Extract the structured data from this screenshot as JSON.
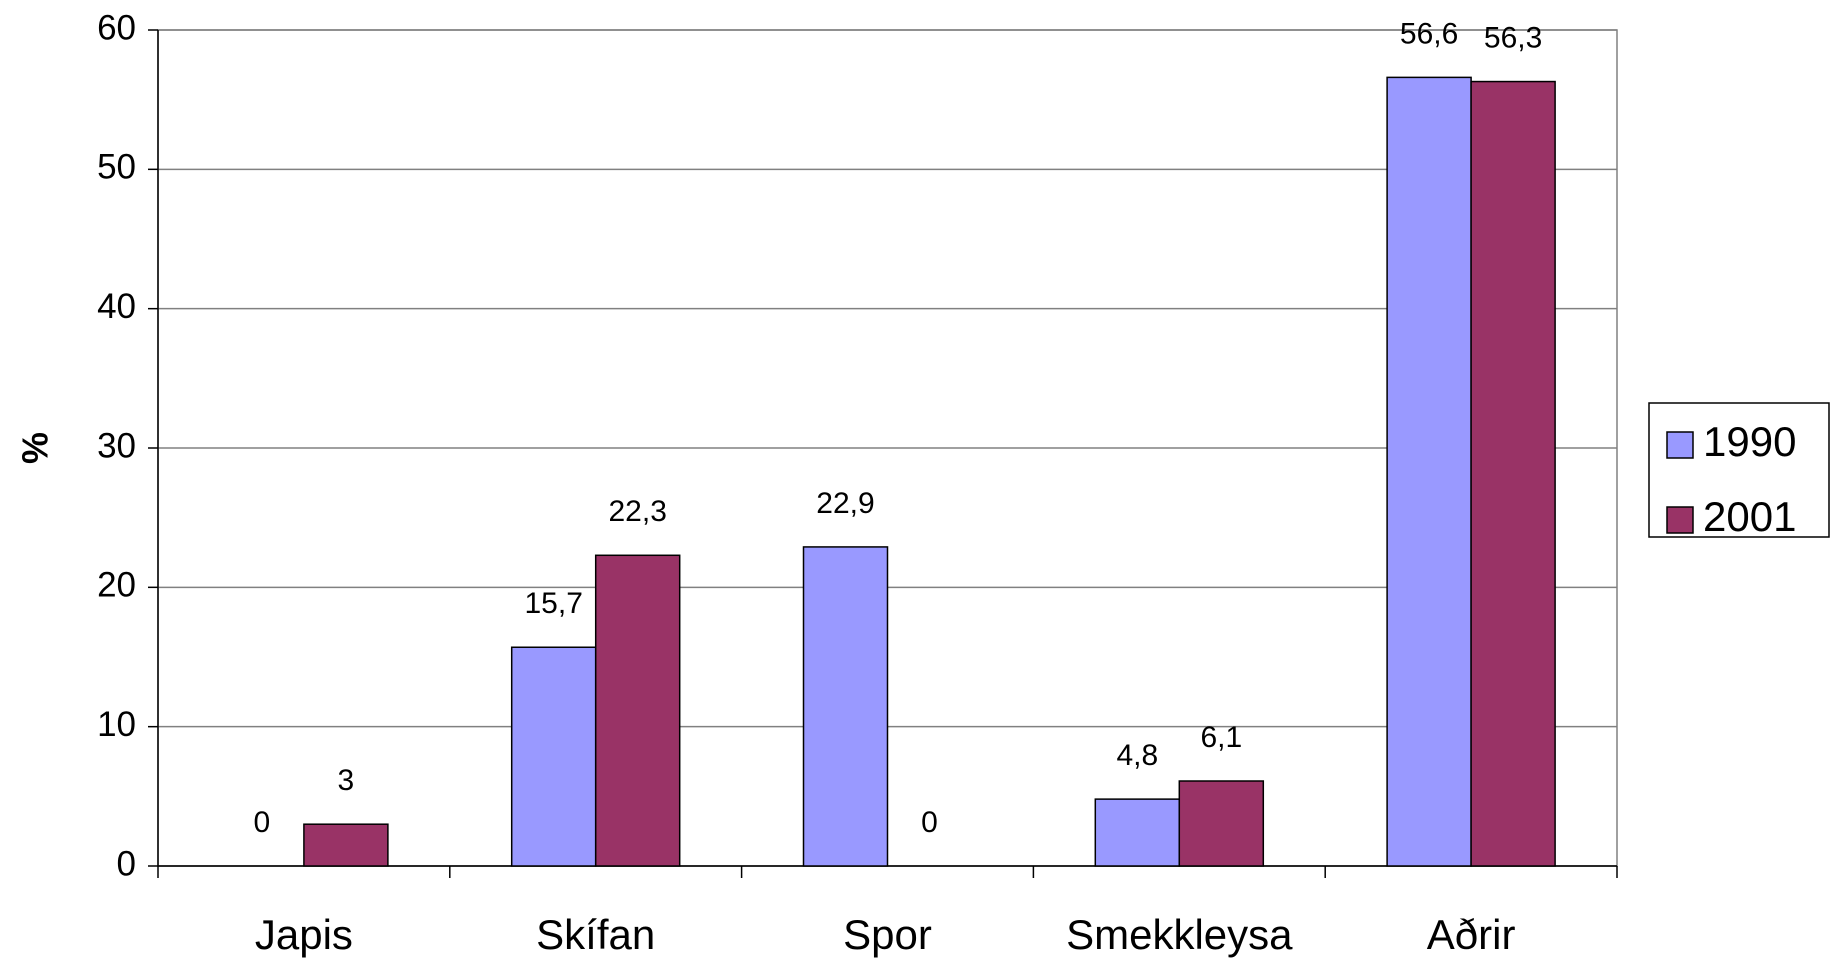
{
  "chart_data": {
    "type": "bar",
    "y_label": "%",
    "categories": [
      "Japis",
      "Skífan",
      "Spor",
      "Smekkleysa",
      "Aðrir"
    ],
    "series": [
      {
        "name": "1990",
        "color": "#9999ff",
        "values": [
          0,
          15.7,
          22.9,
          4.8,
          56.6
        ],
        "value_labels": [
          "0",
          "15,7",
          "22,9",
          "4,8",
          "56,6"
        ]
      },
      {
        "name": "2001",
        "color": "#993366",
        "values": [
          3,
          22.3,
          0,
          6.1,
          56.3
        ],
        "value_labels": [
          "3",
          "22,3",
          "0",
          "6,1",
          "56,3"
        ]
      }
    ],
    "ylim": [
      0,
      60
    ],
    "yticks": [
      0,
      10,
      20,
      30,
      40,
      50,
      60
    ],
    "grid": true,
    "legend": "right"
  }
}
